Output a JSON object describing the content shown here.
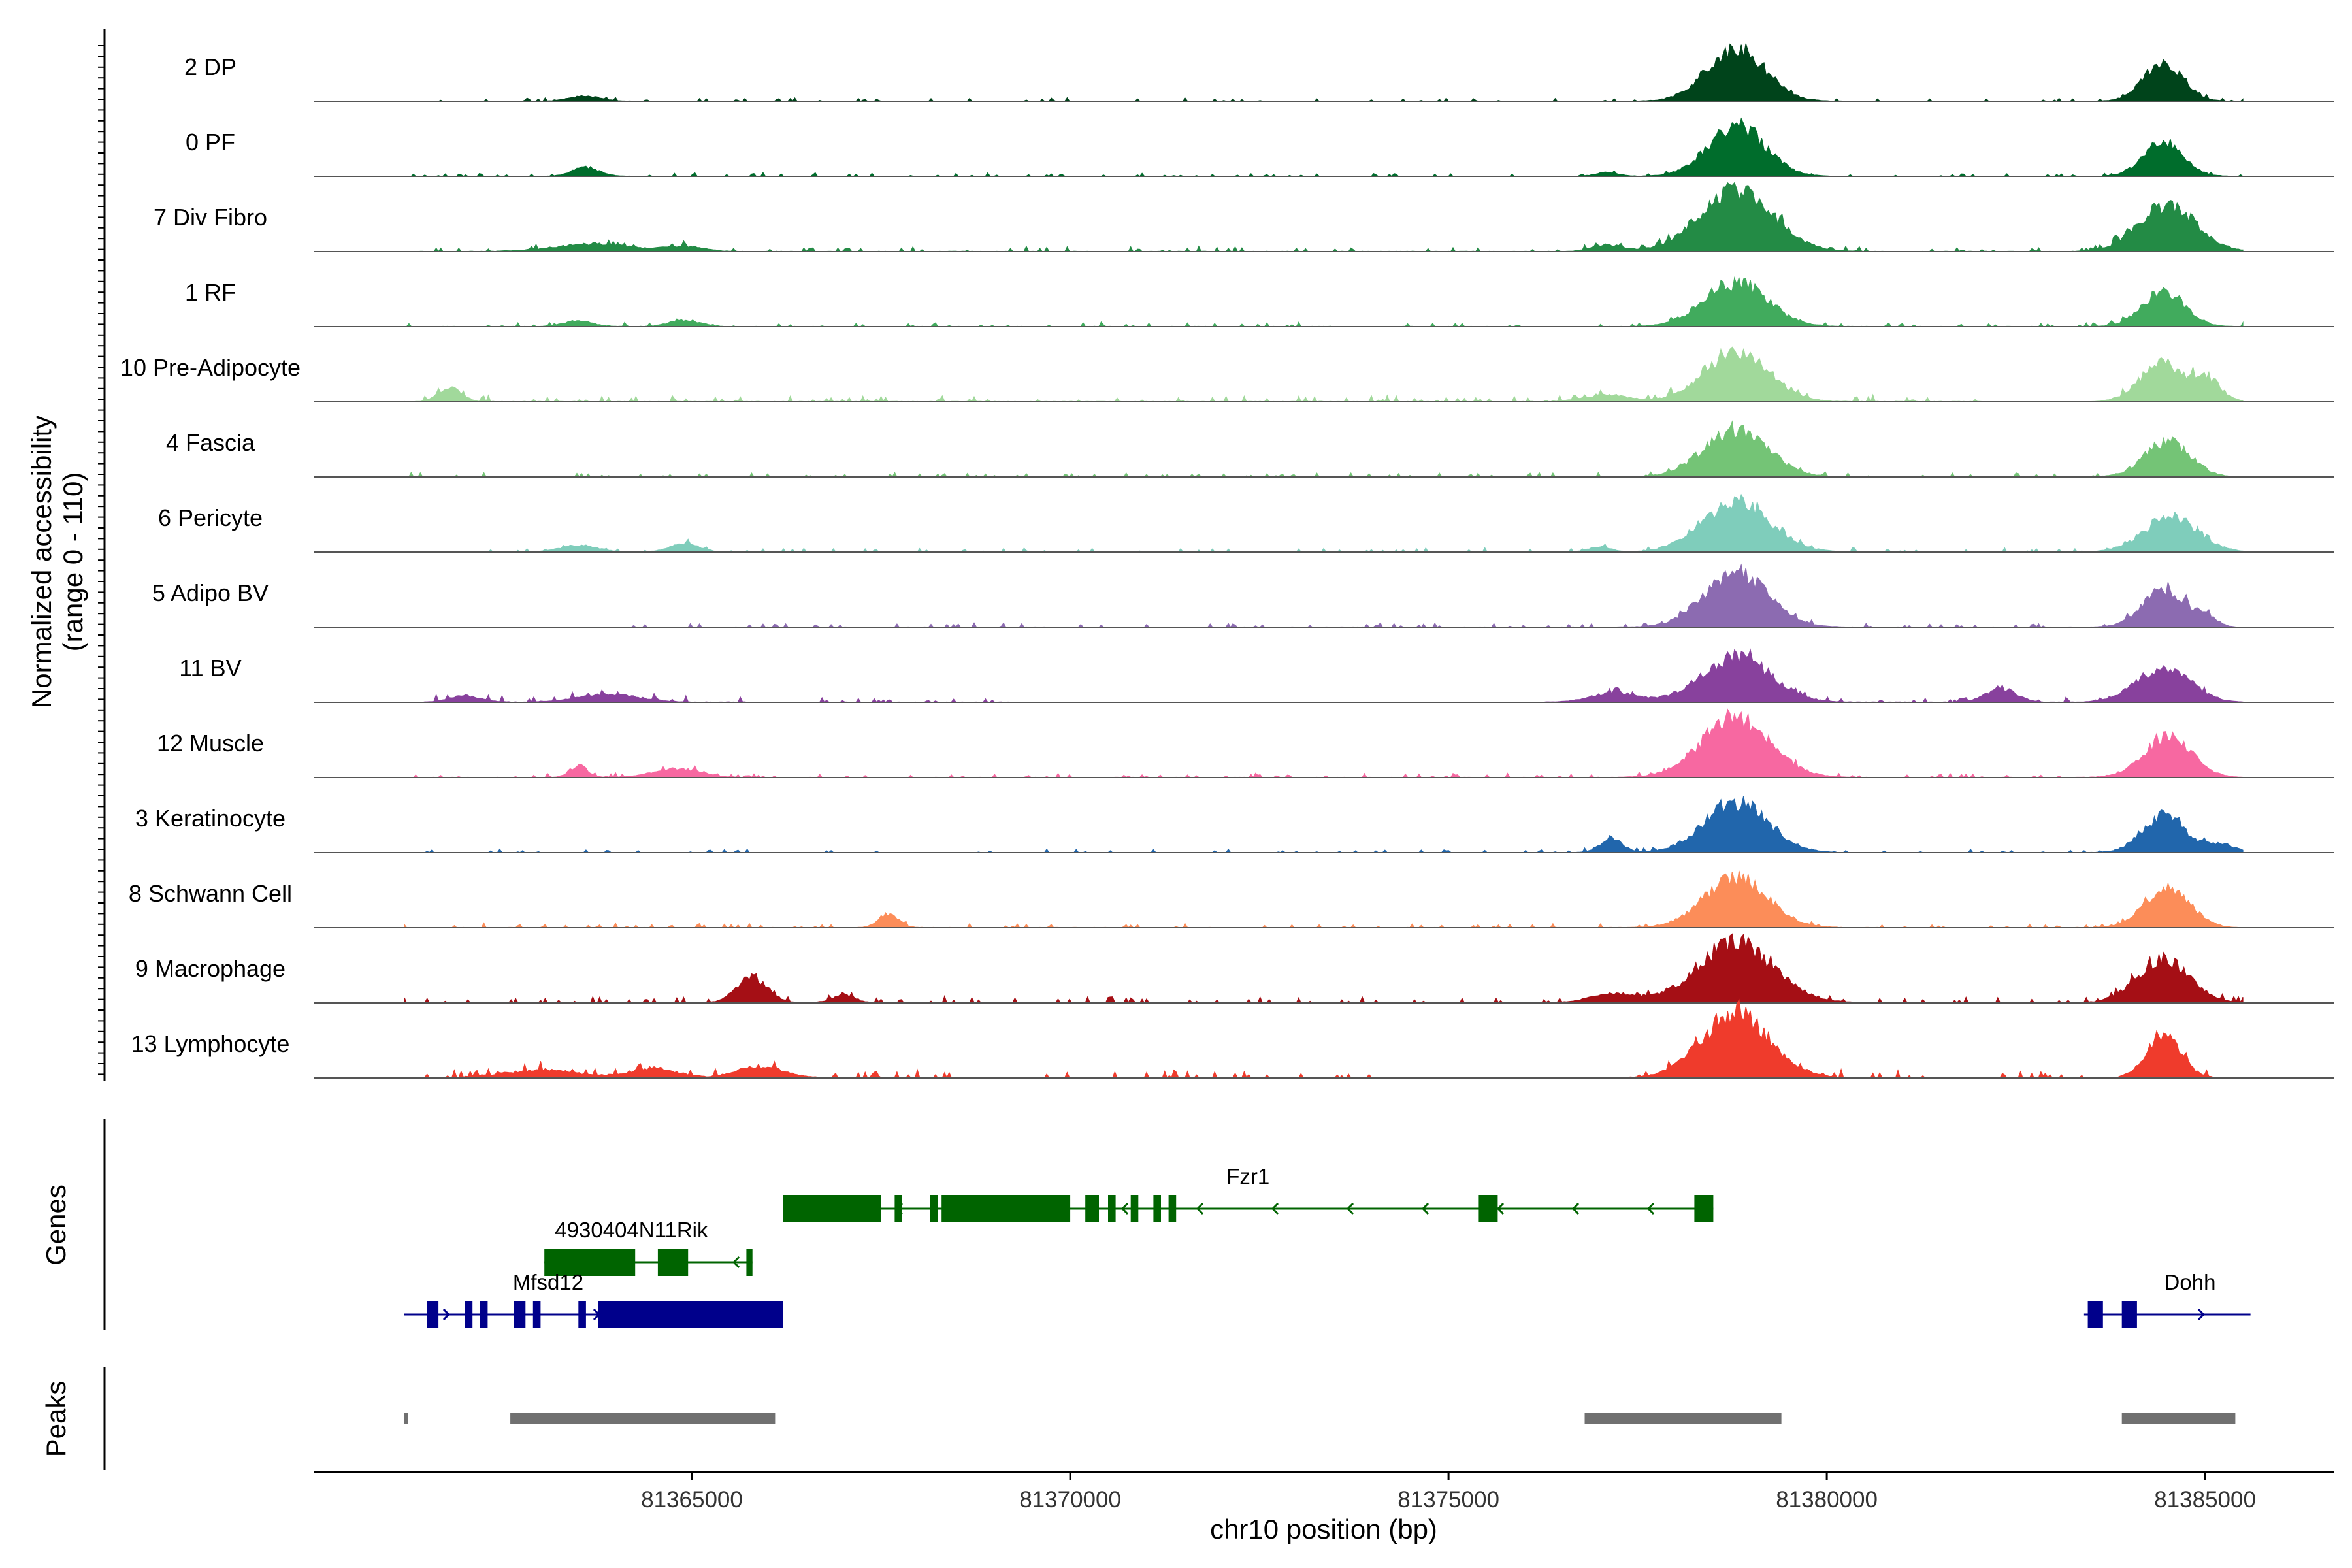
{
  "chart_data": {
    "type": "area",
    "title": "",
    "xlabel": "chr10 position (bp)",
    "ylabel": "Normalized accessibility",
    "ylabel_range": "(range 0 - 110)",
    "xlim": [
      81360000,
      81386700
    ],
    "ylim": [
      0,
      110
    ],
    "x_ticks": [
      81365000,
      81370000,
      81375000,
      81380000,
      81385000
    ],
    "x_tick_labels": [
      "81365000",
      "81370000",
      "81375000",
      "81380000",
      "81385000"
    ],
    "signal_extent": [
      81361200,
      81385500
    ],
    "panel_labels": {
      "genes": "Genes",
      "peaks": "Peaks"
    },
    "tracks": [
      {
        "name": "2 DP",
        "color": "#00441b",
        "peaks": [
          [
            81363600,
            8,
            200
          ],
          [
            81378800,
            85,
            380
          ],
          [
            81384450,
            60,
            260
          ]
        ],
        "noise": [
          [
            81361200,
            81385500,
            4
          ]
        ]
      },
      {
        "name": "0 PF",
        "color": "#006d2c",
        "peaks": [
          [
            81363600,
            14,
            180
          ],
          [
            81377100,
            6,
            150
          ],
          [
            81378800,
            78,
            380
          ],
          [
            81384450,
            55,
            260
          ]
        ],
        "noise": [
          [
            81361200,
            81385500,
            4
          ]
        ]
      },
      {
        "name": "7 Div Fibro",
        "color": "#238b45",
        "peaks": [
          [
            81363700,
            12,
            500
          ],
          [
            81364900,
            8,
            250
          ],
          [
            81377100,
            10,
            200
          ],
          [
            81378800,
            98,
            480
          ],
          [
            81384500,
            72,
            380
          ]
        ],
        "noise": [
          [
            81361200,
            81385500,
            6
          ]
        ]
      },
      {
        "name": "1 RF",
        "color": "#41ab5d",
        "peaks": [
          [
            81363500,
            8,
            200
          ],
          [
            81364900,
            10,
            200
          ],
          [
            81378800,
            70,
            420
          ],
          [
            81384450,
            55,
            280
          ]
        ],
        "noise": [
          [
            81361200,
            81385500,
            5
          ]
        ]
      },
      {
        "name": "10 Pre-Adipocyte",
        "color": "#a1d99b",
        "peaks": [
          [
            81361800,
            22,
            150
          ],
          [
            81377100,
            10,
            300
          ],
          [
            81378800,
            80,
            420
          ],
          [
            81384450,
            60,
            300
          ],
          [
            81385050,
            30,
            180
          ]
        ],
        "noise": [
          [
            81361200,
            81382100,
            8
          ],
          [
            81383900,
            81385100,
            8
          ]
        ]
      },
      {
        "name": "4 Fascia",
        "color": "#74c476",
        "peaks": [
          [
            81378800,
            75,
            420
          ],
          [
            81384500,
            55,
            300
          ]
        ],
        "noise": [
          [
            81361200,
            81385000,
            5
          ]
        ]
      },
      {
        "name": "6 Pericyte",
        "color": "#7fcdbb",
        "peaks": [
          [
            81363500,
            10,
            250
          ],
          [
            81364900,
            12,
            200
          ],
          [
            81377000,
            8,
            150
          ],
          [
            81378800,
            78,
            450
          ],
          [
            81384550,
            55,
            360
          ]
        ],
        "noise": [
          [
            81361200,
            81385100,
            5
          ]
        ]
      },
      {
        "name": "5 Adipo BV",
        "color": "#8c6bb1",
        "peaks": [
          [
            81378800,
            85,
            420
          ],
          [
            81384450,
            60,
            280
          ],
          [
            81385000,
            15,
            150
          ]
        ],
        "noise": [
          [
            81364200,
            81385200,
            5
          ]
        ]
      },
      {
        "name": "11 BV",
        "color": "#88419d",
        "peaks": [
          [
            81362000,
            10,
            200
          ],
          [
            81363900,
            12,
            400
          ],
          [
            81377200,
            15,
            300
          ],
          [
            81378800,
            72,
            450
          ],
          [
            81382300,
            22,
            200
          ],
          [
            81384450,
            55,
            350
          ]
        ],
        "noise": [
          [
            81361400,
            81365700,
            8
          ],
          [
            81366500,
            81369200,
            6
          ],
          [
            81376000,
            81385200,
            6
          ]
        ]
      },
      {
        "name": "12 Muscle",
        "color": "#f768a1",
        "peaks": [
          [
            81363500,
            18,
            120
          ],
          [
            81364800,
            14,
            300
          ],
          [
            81378800,
            95,
            450
          ],
          [
            81384500,
            62,
            320
          ]
        ],
        "noise": [
          [
            81361200,
            81385100,
            5
          ]
        ]
      },
      {
        "name": "3 Keratinocyte",
        "color": "#2166ac",
        "peaks": [
          [
            81377150,
            22,
            150
          ],
          [
            81378800,
            80,
            420
          ],
          [
            81384450,
            58,
            280
          ],
          [
            81385200,
            12,
            200
          ]
        ],
        "noise": [
          [
            81361200,
            81385500,
            4
          ]
        ]
      },
      {
        "name": "8 Schwann Cell",
        "color": "#fc8d59",
        "peaks": [
          [
            81367600,
            22,
            130
          ],
          [
            81378800,
            78,
            420
          ],
          [
            81384500,
            60,
            300
          ]
        ],
        "noise": [
          [
            81361200,
            81385200,
            5
          ]
        ]
      },
      {
        "name": "9 Macrophage",
        "color": "#a50f15",
        "peaks": [
          [
            81365800,
            40,
            200
          ],
          [
            81367000,
            12,
            150
          ],
          [
            81377200,
            15,
            300
          ],
          [
            81378800,
            95,
            500
          ],
          [
            81384450,
            70,
            340
          ]
        ],
        "noise": [
          [
            81361200,
            81385500,
            8
          ]
        ]
      },
      {
        "name": "13 Lymphocyte",
        "color": "#ef3b2c",
        "peaks": [
          [
            81363000,
            12,
            500
          ],
          [
            81364500,
            15,
            300
          ],
          [
            81365900,
            18,
            300
          ],
          [
            81378800,
            100,
            450
          ],
          [
            81384450,
            70,
            220
          ]
        ],
        "noise": [
          [
            81361200,
            81374000,
            10
          ],
          [
            81377000,
            81385400,
            10
          ]
        ]
      }
    ],
    "genes": [
      {
        "name": "Fzr1",
        "color": "#006400",
        "row": 1,
        "strand": "-",
        "start": 81366200,
        "end": 81378500,
        "exons": [
          [
            81366200,
            81367500
          ],
          [
            81367680,
            81367780
          ],
          [
            81368150,
            81368250
          ],
          [
            81368300,
            81370000
          ],
          [
            81370200,
            81370380
          ],
          [
            81370500,
            81370600
          ],
          [
            81370800,
            81370900
          ],
          [
            81371100,
            81371200
          ],
          [
            81371300,
            81371400
          ],
          [
            81375400,
            81375650
          ],
          [
            81378250,
            81378500
          ]
        ]
      },
      {
        "name": "4930404N11Rik",
        "color": "#006400",
        "row": 2,
        "strand": "-",
        "start": 81363050,
        "end": 81365800,
        "exons": [
          [
            81363050,
            81364250
          ],
          [
            81364550,
            81364950
          ],
          [
            81365720,
            81365800
          ]
        ]
      },
      {
        "name": "Mfsd12",
        "color": "#00008b",
        "row": 3,
        "strand": "+",
        "start": 81361200,
        "end": 81366200,
        "exons": [
          [
            81361500,
            81361650
          ],
          [
            81362000,
            81362100
          ],
          [
            81362200,
            81362300
          ],
          [
            81362650,
            81362800
          ],
          [
            81362900,
            81363000
          ],
          [
            81363500,
            81363600
          ],
          [
            81363760,
            81366200
          ]
        ]
      },
      {
        "name": "Dohh",
        "color": "#00008b",
        "row": 3,
        "strand": "+",
        "start": 81383400,
        "end": 81385600,
        "exons": [
          [
            81383450,
            81383650
          ],
          [
            81383900,
            81384100
          ]
        ]
      }
    ],
    "peak_regions": [
      [
        81361200,
        81361250
      ],
      [
        81362600,
        81366100
      ],
      [
        81376800,
        81379400
      ],
      [
        81383900,
        81385400
      ]
    ],
    "peak_color": "#707070"
  }
}
